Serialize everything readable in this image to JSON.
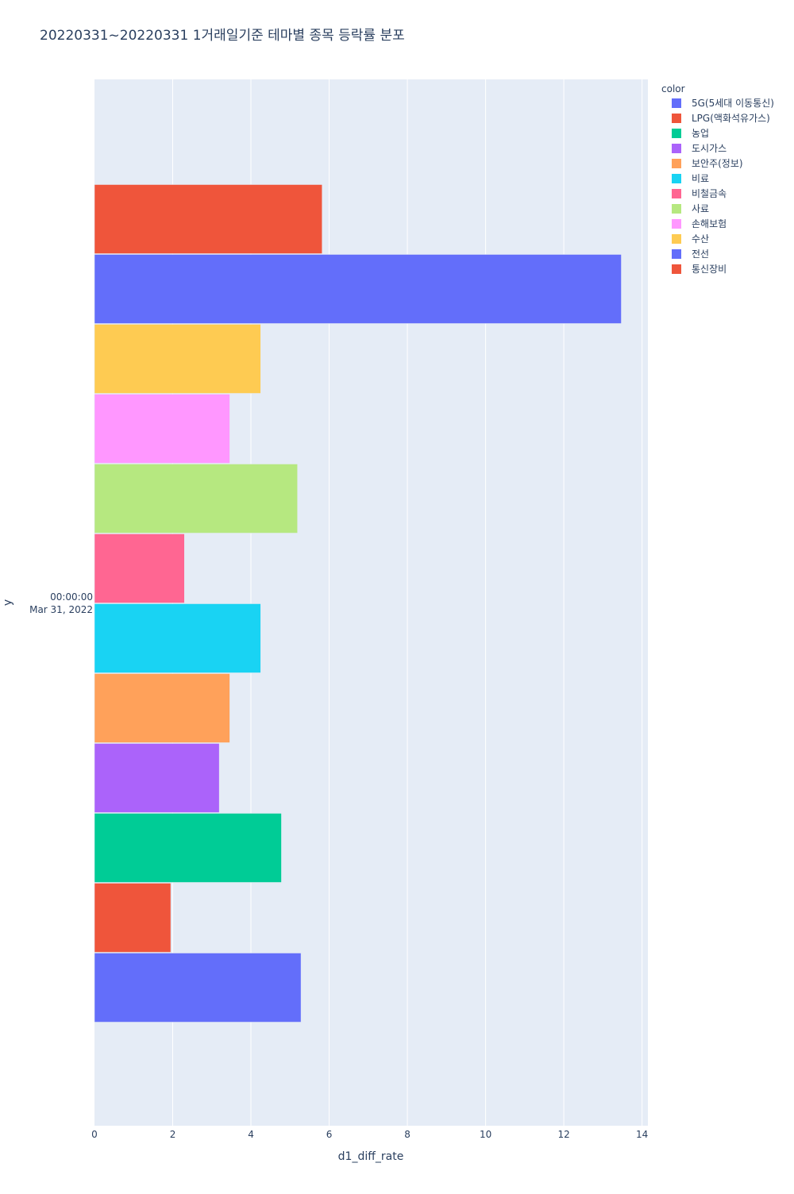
{
  "chart_data": {
    "type": "bar",
    "orientation": "horizontal",
    "barmode": "group",
    "title": "20220331~20220331 1거래일기준 테마별 종목 등락률 분포",
    "xlabel": "d1_diff_rate",
    "ylabel": "y",
    "xlim": [
      0,
      14.15
    ],
    "xticks": [
      0,
      2,
      4,
      6,
      8,
      10,
      12,
      14
    ],
    "grid": true,
    "y_category": [
      "00:00:00",
      "Mar 31, 2022"
    ],
    "legend": {
      "title": "color",
      "position": "top-right"
    },
    "series": [
      {
        "name": "5G(5세대 이동통신)",
        "color": "#636efa",
        "value": 5.28
      },
      {
        "name": "LPG(액화석유가스)",
        "color": "#EF553B",
        "value": 1.95
      },
      {
        "name": "농업",
        "color": "#00cc96",
        "value": 4.78
      },
      {
        "name": "도시가스",
        "color": "#ab63fa",
        "value": 3.19
      },
      {
        "name": "보안주(정보)",
        "color": "#FFA15A",
        "value": 3.46
      },
      {
        "name": "비료",
        "color": "#19d3f3",
        "value": 4.25
      },
      {
        "name": "비철금속",
        "color": "#FF6692",
        "value": 2.3
      },
      {
        "name": "사료",
        "color": "#B6E880",
        "value": 5.19
      },
      {
        "name": "손해보험",
        "color": "#FF97FF",
        "value": 3.46
      },
      {
        "name": "수산",
        "color": "#FECB52",
        "value": 4.25
      },
      {
        "name": "전선",
        "color": "#636efa",
        "value": 13.47
      },
      {
        "name": "통신장비",
        "color": "#EF553B",
        "value": 5.82
      }
    ]
  },
  "colors": {
    "plot_bg": "#E5ECF6",
    "grid": "#ffffff",
    "text": "#2a3f5f"
  }
}
